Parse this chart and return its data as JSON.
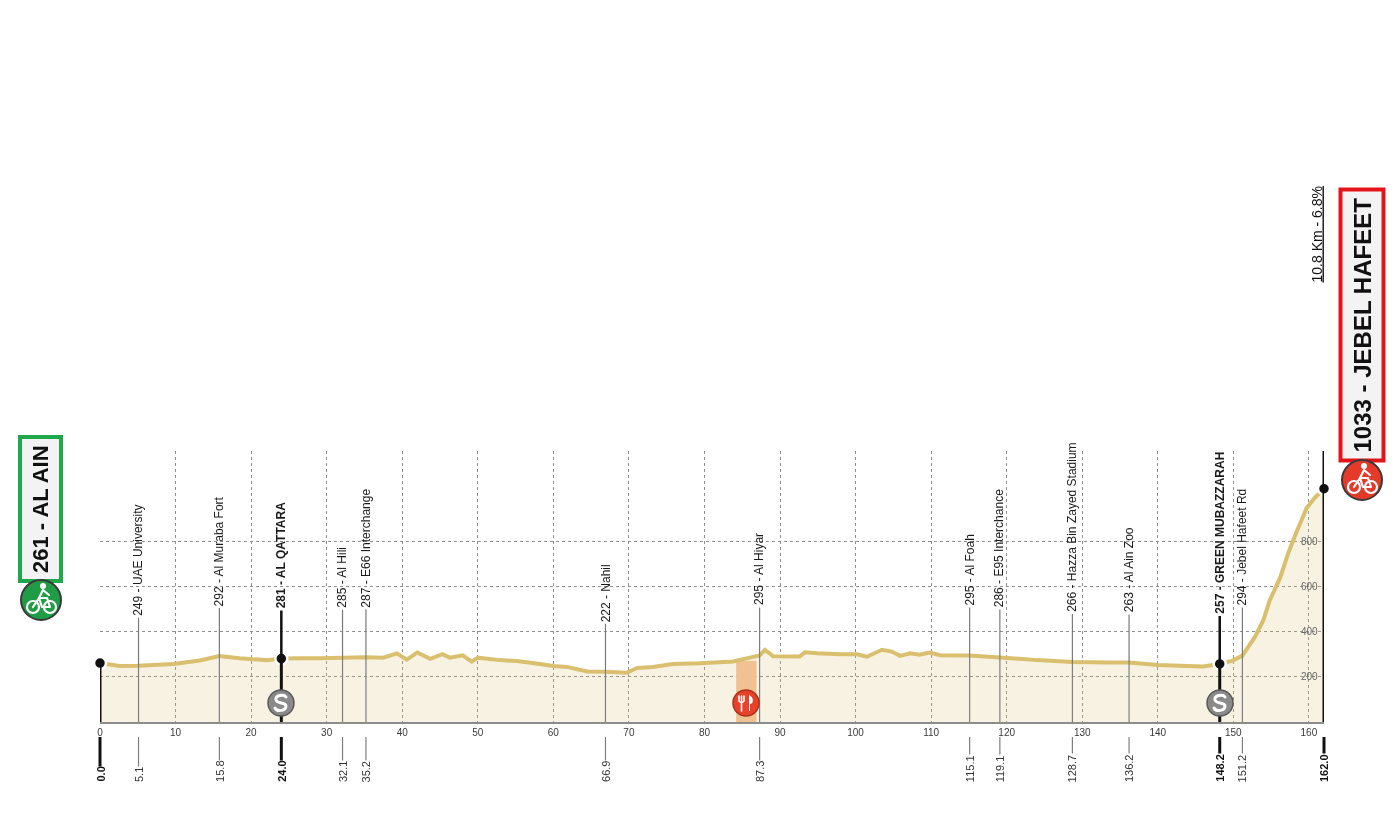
{
  "chart_data": {
    "type": "area",
    "x": [
      0,
      2.6,
      5.1,
      9.7,
      13.2,
      15.8,
      18.5,
      22,
      24,
      26.5,
      29.1,
      32.1,
      35.2,
      37.5,
      39.3,
      40.6,
      42,
      43.7,
      45.3,
      46.3,
      48,
      49.2,
      50,
      52.9,
      55.2,
      58.2,
      60,
      61.8,
      64.5,
      66.9,
      69.7,
      71.1,
      73.2,
      75.8,
      79.4,
      83.8,
      86,
      87.3,
      88,
      89.1,
      92.6,
      93.3,
      94.9,
      97.9,
      100.2,
      101.5,
      103.5,
      104.8,
      105.9,
      107.2,
      108.5,
      109.8,
      111.2,
      115.1,
      119.1,
      124,
      128.7,
      133.7,
      136.2,
      140,
      146,
      148.2,
      149.9,
      151.2,
      152.9,
      154,
      154.8,
      156.2,
      157.3,
      158.4,
      159.7,
      160.8,
      162
    ],
    "series": [
      {
        "color": "#d9bf6e",
        "values": [
          261,
          248,
          249,
          257,
          272,
          292,
          282,
          274,
          281,
          282,
          282,
          285,
          287,
          285,
          304,
          276,
          308,
          280,
          300,
          285,
          295,
          267,
          285,
          274,
          270,
          257,
          248,
          244,
          224,
          222,
          218,
          239,
          244,
          257,
          260,
          268,
          285,
          295,
          319,
          291,
          290,
          309,
          304,
          300,
          300,
          289,
          320,
          312,
          293,
          304,
          298,
          308,
          296,
          295,
          286,
          274,
          266,
          264,
          263,
          252,
          246,
          257,
          272,
          294,
          379,
          453,
          537,
          639,
          751,
          845,
          947,
          994,
          1033
        ]
      },
      {
        "type": "scatter",
        "x": [
          0,
          24,
          148.2,
          162
        ],
        "values": [
          261,
          281,
          257,
          1033
        ],
        "color": "#111111"
      }
    ],
    "xlim": [
      0,
      162
    ],
    "xticks": [
      0,
      10,
      20,
      30,
      40,
      50,
      60,
      70,
      80,
      90,
      100,
      110,
      120,
      130,
      140,
      150,
      160
    ],
    "ylim": [
      0,
      1200
    ],
    "yticks": [
      200,
      400,
      600,
      800
    ],
    "grid": true,
    "ref_lines": [
      {
        "axis": "x",
        "value": 0,
        "label": "0.0",
        "color": "#111111"
      },
      {
        "axis": "x",
        "value": 5.1,
        "label": "5.1",
        "color": "#7f7f7f"
      },
      {
        "axis": "x",
        "value": 15.8,
        "label": "15.8",
        "color": "#7f7f7f"
      },
      {
        "axis": "x",
        "value": 24,
        "label": "24.0",
        "color": "#111111"
      },
      {
        "axis": "x",
        "value": 32.1,
        "label": "32.1",
        "color": "#7f7f7f"
      },
      {
        "axis": "x",
        "value": 35.2,
        "label": "35.2",
        "color": "#7f7f7f"
      },
      {
        "axis": "x",
        "value": 66.9,
        "label": "66.9",
        "color": "#7f7f7f"
      },
      {
        "axis": "x",
        "value": 87.3,
        "label": "87.3",
        "color": "#7f7f7f"
      },
      {
        "axis": "x",
        "value": 115.1,
        "label": "115.1",
        "color": "#7f7f7f"
      },
      {
        "axis": "x",
        "value": 119.1,
        "label": "119.1",
        "color": "#7f7f7f"
      },
      {
        "axis": "x",
        "value": 128.7,
        "label": "128.7",
        "color": "#7f7f7f"
      },
      {
        "axis": "x",
        "value": 136.2,
        "label": "136.2",
        "color": "#7f7f7f"
      },
      {
        "axis": "x",
        "value": 148.2,
        "label": "148.2",
        "color": "#111111"
      },
      {
        "axis": "x",
        "value": 151.2,
        "label": "151.2",
        "color": "#7f7f7f"
      },
      {
        "axis": "x",
        "value": 162,
        "label": "162.0",
        "color": "#111111"
      }
    ],
    "bands": [
      {
        "axis": "x",
        "from": 84.2,
        "to": 86.9,
        "color": "#f8c29a"
      }
    ],
    "annotations": [
      "261 - AL AIN",
      "1033 - JEBEL HAFEET",
      "10.8 Km - 6.8%",
      {
        "text": "249 - UAE University",
        "x": 5.1,
        "y": 249
      },
      {
        "text": "292 - Al Muraba Fort",
        "x": 15.8,
        "y": 292
      },
      {
        "text": "281 - AL QATTARA",
        "x": 24,
        "y": 281
      },
      {
        "text": "285 - Al Hili",
        "x": 32.1,
        "y": 285
      },
      {
        "text": "287 - E66 Interchange",
        "x": 35.2,
        "y": 287
      },
      {
        "text": "222 - Nahil",
        "x": 66.9,
        "y": 222
      },
      {
        "text": "295 - Al Hiyar",
        "x": 87.3,
        "y": 295
      },
      {
        "text": "295 - Al Foah",
        "x": 115.1,
        "y": 295
      },
      {
        "text": "286 - E95 Interchance",
        "x": 119.1,
        "y": 286
      },
      {
        "text": "266 - Hazza Bin Zayed Stadium",
        "x": 128.7,
        "y": 266
      },
      {
        "text": "263 - Al Ain Zoo",
        "x": 136.2,
        "y": 263
      },
      {
        "text": "257 - GREEN MUBAZZARAH",
        "x": 148.2,
        "y": 257
      },
      {
        "text": "294 - Jebel Hafeet Rd",
        "x": 151.2,
        "y": 294
      }
    ]
  }
}
